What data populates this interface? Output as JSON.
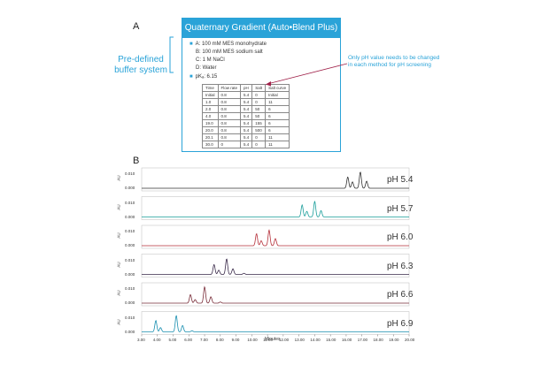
{
  "panel_a_letter": "A",
  "panel_b_letter": "B",
  "gradient": {
    "title": "Quaternary Gradient (Auto•Blend Plus)",
    "buffers": [
      "A: 100 mM MES monohydrate",
      "B: 100 mM MES sodium salt",
      "C: 1 M NaCl",
      "D: Water"
    ],
    "pka": "pKₐ: 6.15",
    "table": {
      "headers": [
        "Time",
        "Flow rate",
        "pH",
        "Salt",
        "Salt curve"
      ],
      "rows": [
        [
          "Initial",
          "0.8",
          "5.4",
          "0",
          "Initial"
        ],
        [
          "1.0",
          "0.8",
          "5.4",
          "0",
          "11"
        ],
        [
          "2.0",
          "0.8",
          "5.4",
          "50",
          "6"
        ],
        [
          "4.0",
          "0.8",
          "5.4",
          "50",
          "6"
        ],
        [
          "19.0",
          "0.8",
          "5.4",
          "155",
          "6"
        ],
        [
          "20.0",
          "0.8",
          "5.4",
          "500",
          "6"
        ],
        [
          "20.1",
          "0.8",
          "5.4",
          "0",
          "11"
        ],
        [
          "30.0",
          "0",
          "5.4",
          "0",
          "11"
        ]
      ]
    }
  },
  "predefined_label": "Pre-defined buffer system",
  "only_ph_note": "Only pH value needs to be changed in each method for pH screening",
  "colors": {
    "accent": "#2aa3d8",
    "arrow": "#a0224a"
  },
  "chart_data": {
    "type": "line",
    "xlabel": "Minutes",
    "ylabel": "AU",
    "xlim": [
      3.0,
      20.0
    ],
    "x_ticks": [
      "3.00",
      "4.00",
      "5.00",
      "6.00",
      "7.00",
      "8.00",
      "9.00",
      "10.00",
      "11.00",
      "12.00",
      "13.00",
      "14.00",
      "15.00",
      "16.00",
      "17.00",
      "18.00",
      "19.00",
      "20.00"
    ],
    "y_ticks": [
      "0.000",
      "0.010"
    ],
    "series": [
      {
        "name": "pH 5.4",
        "color": "#333333",
        "peaks": [
          {
            "x": 16.1,
            "h": 0.8
          },
          {
            "x": 16.4,
            "h": 0.45
          },
          {
            "x": 16.9,
            "h": 1.15
          },
          {
            "x": 17.3,
            "h": 0.5
          }
        ]
      },
      {
        "name": "pH 5.7",
        "color": "#1a9e9a",
        "peaks": [
          {
            "x": 13.2,
            "h": 0.85
          },
          {
            "x": 13.5,
            "h": 0.4
          },
          {
            "x": 14.0,
            "h": 1.1
          },
          {
            "x": 14.4,
            "h": 0.45
          }
        ]
      },
      {
        "name": "pH 6.0",
        "color": "#b5303a",
        "peaks": [
          {
            "x": 10.3,
            "h": 0.85
          },
          {
            "x": 10.6,
            "h": 0.35
          },
          {
            "x": 11.1,
            "h": 1.1
          },
          {
            "x": 11.5,
            "h": 0.5
          }
        ]
      },
      {
        "name": "pH 6.3",
        "color": "#3a2a4a",
        "peaks": [
          {
            "x": 7.6,
            "h": 0.7
          },
          {
            "x": 7.9,
            "h": 0.3
          },
          {
            "x": 8.4,
            "h": 1.1
          },
          {
            "x": 8.8,
            "h": 0.4
          },
          {
            "x": 9.5,
            "h": 0.08
          }
        ]
      },
      {
        "name": "pH 6.6",
        "color": "#7a2e3a",
        "peaks": [
          {
            "x": 6.1,
            "h": 0.6
          },
          {
            "x": 6.4,
            "h": 0.25
          },
          {
            "x": 7.0,
            "h": 1.15
          },
          {
            "x": 7.4,
            "h": 0.45
          },
          {
            "x": 8.0,
            "h": 0.08
          }
        ]
      },
      {
        "name": "pH 6.9",
        "color": "#1a8fb0",
        "peaks": [
          {
            "x": 3.9,
            "h": 0.8
          },
          {
            "x": 4.2,
            "h": 0.3
          },
          {
            "x": 5.2,
            "h": 1.15
          },
          {
            "x": 5.6,
            "h": 0.45
          },
          {
            "x": 6.2,
            "h": 0.08
          }
        ]
      }
    ]
  }
}
